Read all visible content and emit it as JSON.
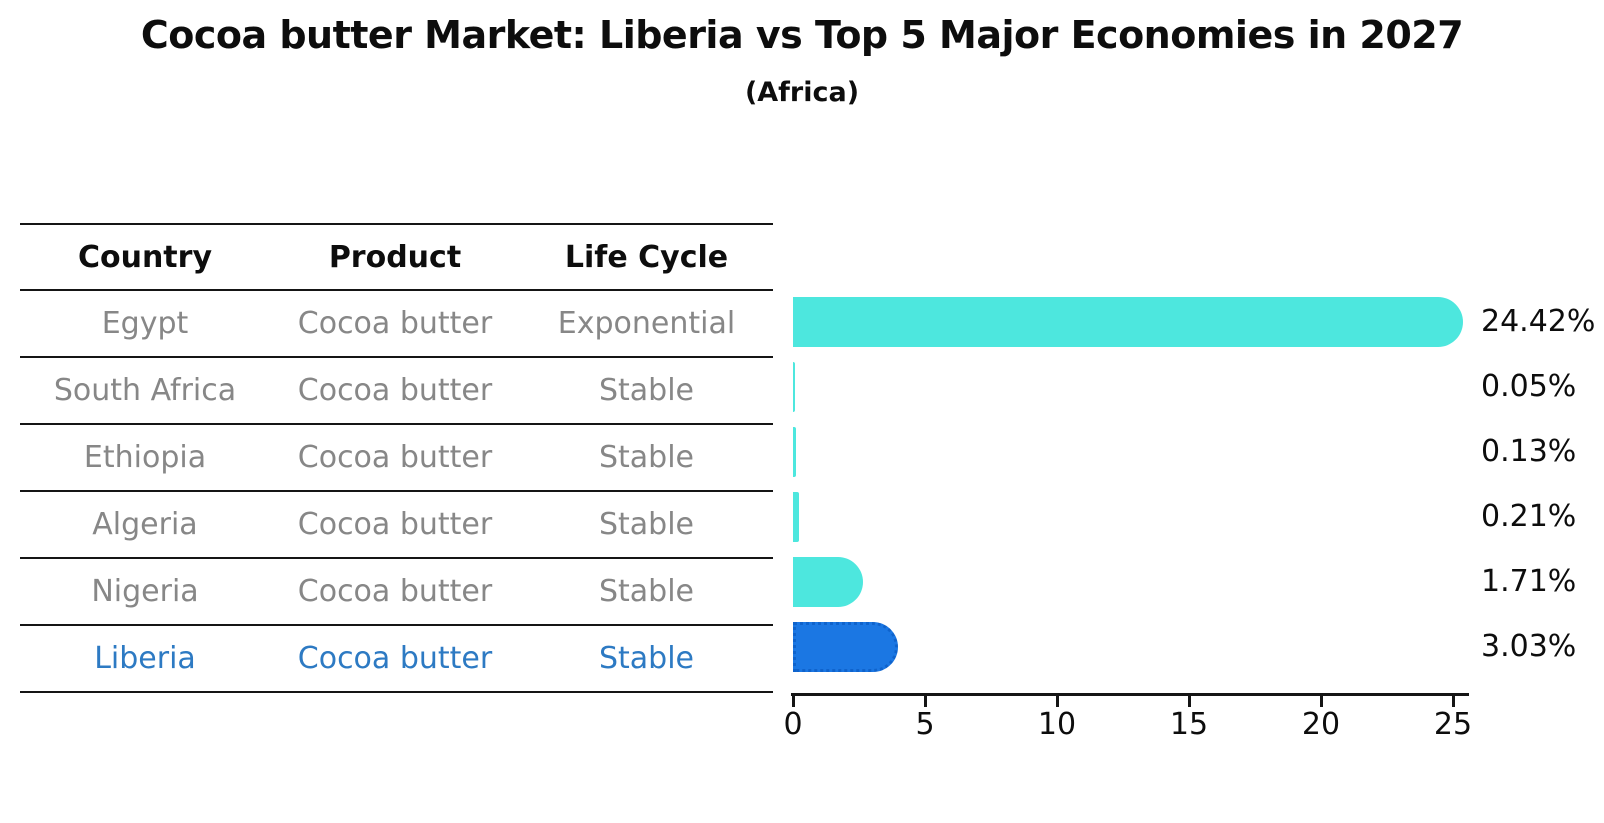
{
  "title": "Cocoa butter Market: Liberia vs Top 5 Major Economies in 2027",
  "subtitle": "(Africa)",
  "table": {
    "headers": [
      "Country",
      "Product",
      "Life Cycle"
    ],
    "rows": [
      {
        "country": "Egypt",
        "product": "Cocoa butter",
        "life_cycle": "Exponential",
        "highlight": false
      },
      {
        "country": "South Africa",
        "product": "Cocoa butter",
        "life_cycle": "Stable",
        "highlight": false
      },
      {
        "country": "Ethiopia",
        "product": "Cocoa butter",
        "life_cycle": "Stable",
        "highlight": false
      },
      {
        "country": "Algeria",
        "product": "Cocoa butter",
        "life_cycle": "Stable",
        "highlight": false
      },
      {
        "country": "Nigeria",
        "product": "Cocoa butter",
        "life_cycle": "Stable",
        "highlight": false
      },
      {
        "country": "Liberia",
        "product": "Cocoa butter",
        "life_cycle": "Stable",
        "highlight": true
      }
    ]
  },
  "chart_data": {
    "type": "bar",
    "orientation": "horizontal",
    "title": "Cocoa butter Market: Liberia vs Top 5 Major Economies in 2027",
    "subtitle": "(Africa)",
    "categories": [
      "Egypt",
      "South Africa",
      "Ethiopia",
      "Algeria",
      "Nigeria",
      "Liberia"
    ],
    "values": [
      24.42,
      0.05,
      0.13,
      0.21,
      1.71,
      3.03
    ],
    "value_labels": [
      "24.42%",
      "0.05%",
      "0.13%",
      "0.21%",
      "1.71%",
      "3.03%"
    ],
    "unit": "%",
    "xlim": [
      0,
      25.6
    ],
    "x_ticks": [
      0,
      5,
      10,
      15,
      20,
      25
    ],
    "grid": false,
    "legend": false,
    "highlight_index": 5,
    "highlight_style": "dotted-border"
  },
  "colors": {
    "bar_default": "#4de7de",
    "bar_highlight": "#1b77e3",
    "bar_highlight_border": "#0f63cc",
    "highlight_text": "#2d7ac3",
    "table_text": "#878787",
    "heading_text": "#0d0d0d",
    "line": "#151515"
  }
}
